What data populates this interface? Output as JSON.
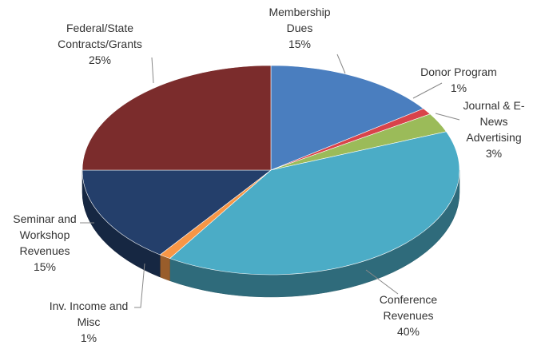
{
  "chart_data": {
    "type": "pie",
    "categories": [
      "Membership Dues",
      "Donor Program",
      "Journal & E-News Advertising",
      "Conference Revenues",
      "Inv. Income and Misc",
      "Seminar and Workshop Revenues",
      "Federal/State Contracts/Grants"
    ],
    "values": [
      15,
      1,
      3,
      40,
      1,
      15,
      25
    ],
    "value_labels": [
      "15%",
      "1%",
      "3%",
      "40%",
      "1%",
      "15%",
      "25%"
    ],
    "colors": [
      "#4a7ebf",
      "#d9434a",
      "#9bbb59",
      "#4bacc6",
      "#f79646",
      "#243f6b",
      "#7b2c2c"
    ]
  }
}
